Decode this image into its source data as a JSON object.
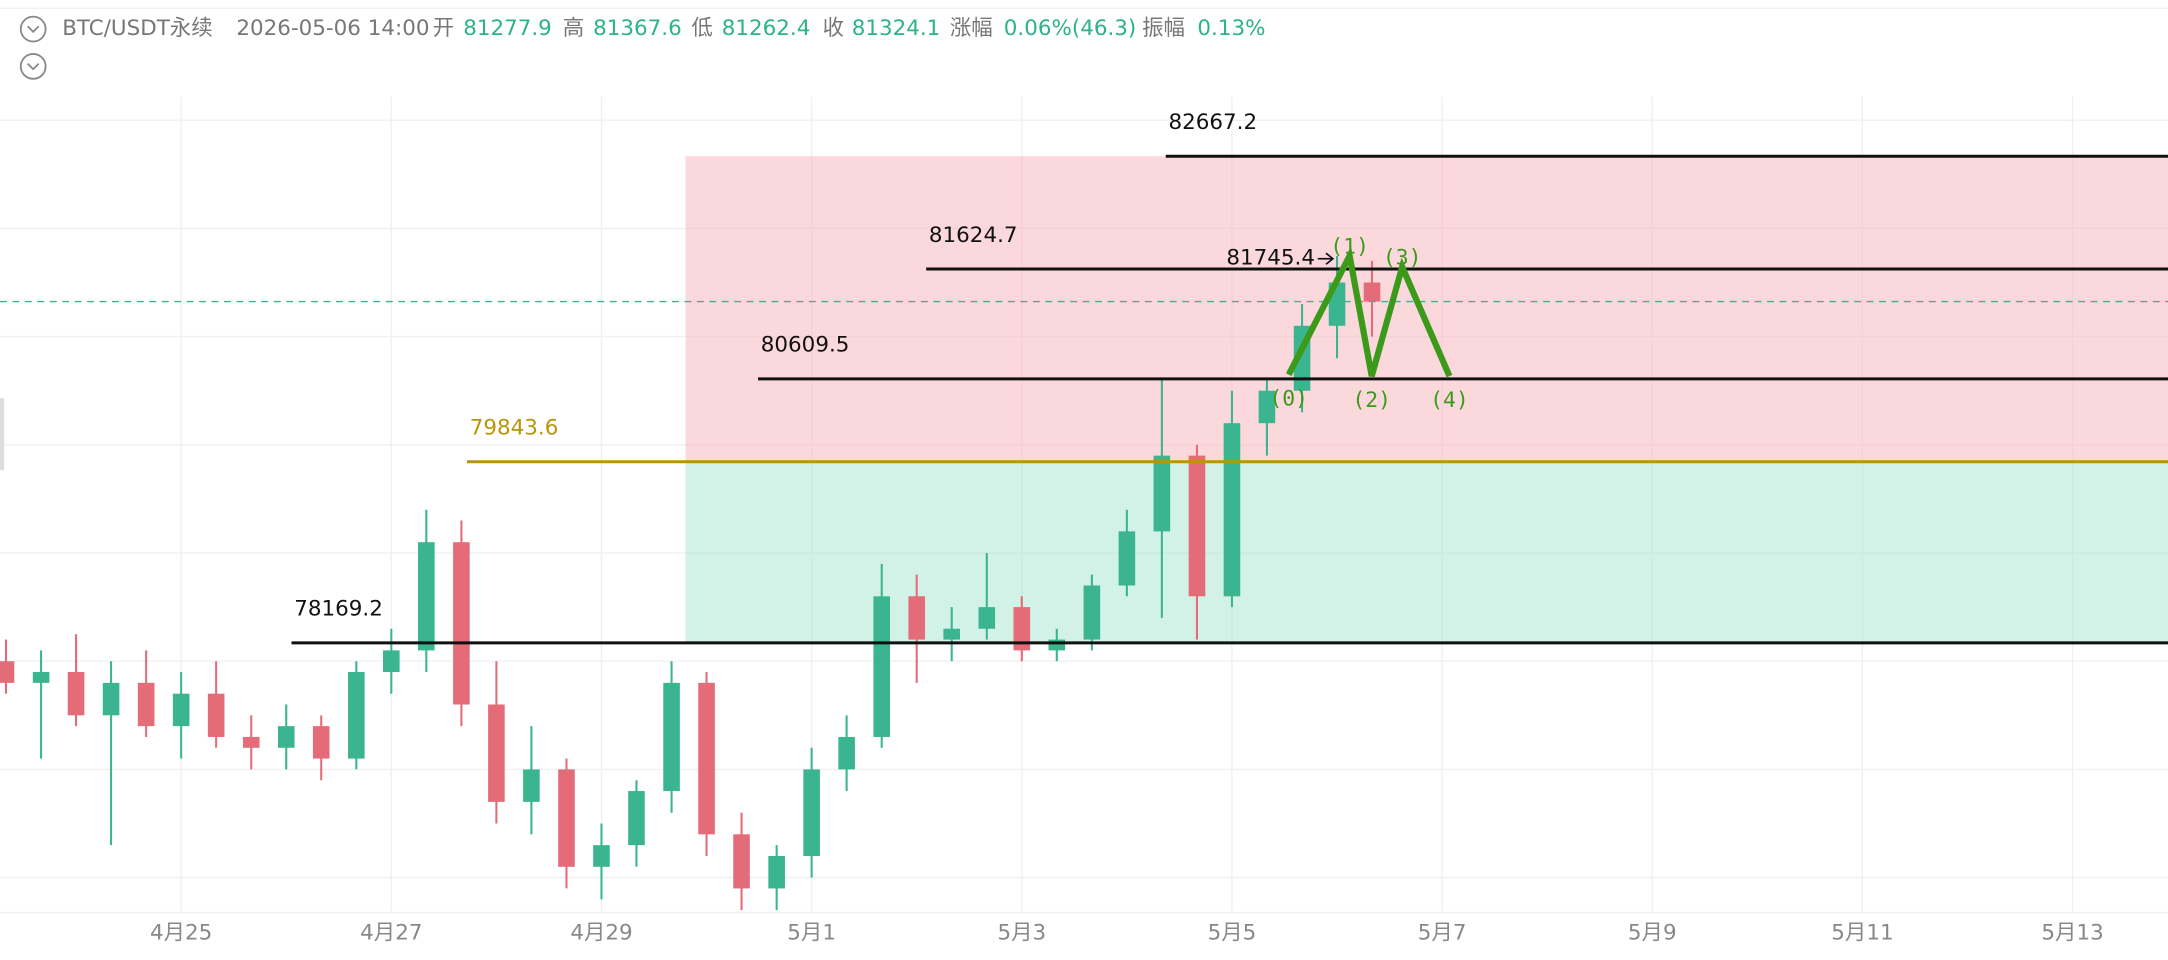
{
  "header": {
    "symbol": "BTC/USDT永续",
    "time": "2026-05-06 14:00",
    "items": [
      {
        "name": "开",
        "value": "81277.9"
      },
      {
        "name": "高",
        "value": "81367.6"
      },
      {
        "name": "低",
        "value": "81262.4"
      },
      {
        "name": "收",
        "value": "81324.1"
      },
      {
        "name": "涨幅",
        "value": "0.06%(46.3)"
      },
      {
        "name": "振幅",
        "value": "0.13%"
      }
    ]
  },
  "chart_data": {
    "type": "candlestick",
    "x": [
      23.333,
      23.667,
      24.0,
      24.333,
      24.667,
      25.0,
      25.333,
      25.667,
      26.0,
      26.333,
      26.667,
      27.0,
      27.333,
      27.667,
      28.0,
      28.333,
      28.667,
      29.0,
      29.333,
      29.667,
      30.0,
      30.333,
      30.667,
      31.0,
      31.333,
      31.667,
      32.0,
      32.333,
      32.667,
      33.0,
      33.333,
      33.667,
      34.0,
      34.333,
      34.667,
      35.0,
      35.333,
      35.667,
      36.0,
      36.333
    ],
    "open": [
      78000,
      77800,
      77900,
      77500,
      77800,
      77400,
      77700,
      77300,
      77200,
      77400,
      77100,
      77900,
      78100,
      79100,
      77600,
      76700,
      77000,
      76100,
      76300,
      76800,
      77800,
      76400,
      75900,
      76200,
      77000,
      77300,
      78600,
      78200,
      78300,
      78500,
      78100,
      78200,
      78700,
      79200,
      79900,
      78600,
      80200,
      80500,
      81100,
      81500
    ],
    "high": [
      78200,
      78100,
      78250,
      78000,
      78100,
      77900,
      78000,
      77500,
      77600,
      77500,
      78000,
      78300,
      79400,
      79300,
      78000,
      77400,
      77100,
      76500,
      76900,
      78000,
      77900,
      76600,
      76300,
      77200,
      77500,
      78900,
      78800,
      78500,
      79000,
      78600,
      78300,
      78800,
      79400,
      80600,
      80000,
      80500,
      80600,
      81300,
      81745.4,
      81700
    ],
    "low": [
      77700,
      77100,
      77400,
      76300,
      77300,
      77100,
      77200,
      77000,
      77000,
      76900,
      77000,
      77700,
      77900,
      77400,
      76500,
      76400,
      75900,
      75800,
      76100,
      76600,
      76200,
      75700,
      75700,
      76000,
      76800,
      77200,
      77800,
      78000,
      78200,
      78000,
      78000,
      78100,
      78600,
      78400,
      78200,
      78500,
      79900,
      80300,
      80800,
      81000
    ],
    "close": [
      77800,
      77900,
      77500,
      77800,
      77400,
      77700,
      77300,
      77200,
      77400,
      77100,
      77900,
      78100,
      79100,
      77600,
      76700,
      77000,
      76100,
      76300,
      76800,
      77800,
      76400,
      75900,
      76200,
      77000,
      77300,
      78600,
      78200,
      78300,
      78500,
      78100,
      78200,
      78700,
      79200,
      79900,
      78600,
      80200,
      80500,
      81100,
      81500,
      81324.1
    ],
    "up_color": "#3bb58f",
    "down_color": "#e46b78",
    "xlim": [
      23.276,
      43.908
    ],
    "xticks": [
      {
        "value": 25,
        "label": "4月25"
      },
      {
        "value": 27,
        "label": "4月27"
      },
      {
        "value": 29,
        "label": "4月29"
      },
      {
        "value": 31,
        "label": "5月1"
      },
      {
        "value": 33,
        "label": "5月3"
      },
      {
        "value": 35,
        "label": "5月5"
      },
      {
        "value": 37,
        "label": "5月7"
      },
      {
        "value": 39,
        "label": "5月9"
      },
      {
        "value": 41,
        "label": "5月11"
      },
      {
        "value": 43,
        "label": "5月13"
      }
    ],
    "ylim": [
      75677,
      84111
    ],
    "yticks": [
      76000,
      77000,
      78000,
      79000,
      80000,
      81000,
      82000,
      83000
    ],
    "grid": true,
    "levels": [
      {
        "value": 82667.2,
        "x_start": 34.37,
        "color": "#111111"
      },
      {
        "value": 81624.7,
        "x_start": 32.09,
        "color": "#111111"
      },
      {
        "value": 80609.5,
        "x_start": 30.49,
        "color": "#111111"
      },
      {
        "value": 79843.6,
        "x_start": 27.72,
        "color": "#b8960a"
      },
      {
        "value": 78169.2,
        "x_start": 26.05,
        "color": "#111111"
      }
    ],
    "box_x_start": 29.8,
    "last_price": 81324.1,
    "annotation": {
      "value": 81745.4,
      "x": 36.0
    },
    "wave": {
      "color": "#3c9a1a",
      "points": [
        {
          "x": 35.54,
          "y": 80648,
          "label": "(0)"
        },
        {
          "x": 36.12,
          "y": 81747,
          "label": "(1)"
        },
        {
          "x": 36.33,
          "y": 80635,
          "label": "(2)"
        },
        {
          "x": 36.62,
          "y": 81645,
          "label": "(3)"
        },
        {
          "x": 37.07,
          "y": 80635,
          "label": "(4)"
        }
      ]
    }
  }
}
